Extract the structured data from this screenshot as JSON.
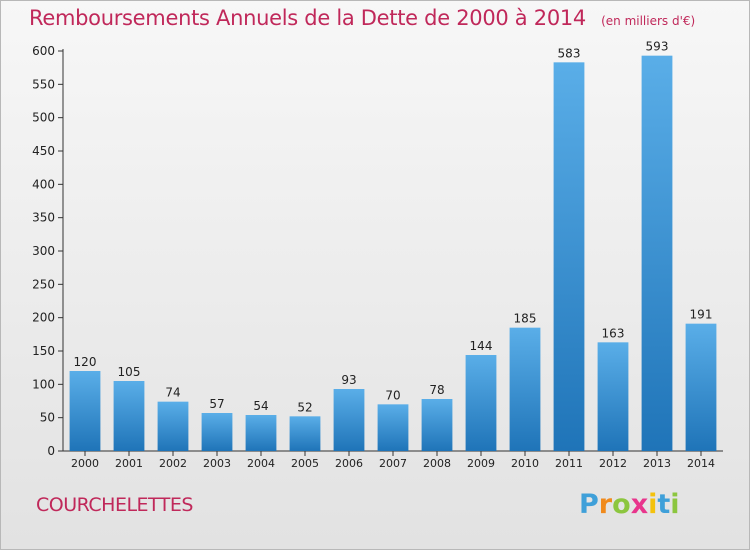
{
  "title": "Remboursements Annuels de la Dette de 2000 à 2014",
  "subtitle": "(en milliers d'€)",
  "commune": "COURCHELETTES",
  "logo": {
    "letters": [
      "P",
      "r",
      "o",
      "x",
      "i",
      "t",
      "i"
    ],
    "colors": [
      "#3fa0d9",
      "#f08a1c",
      "#8cc63f",
      "#e8358c",
      "#f4c20d",
      "#3fa0d9",
      "#8cc63f"
    ]
  },
  "colors": {
    "bar_top": "#5aaee8",
    "bar_bottom": "#1f74b8",
    "title": "#c0285a"
  },
  "chart_data": {
    "type": "bar",
    "categories": [
      "2000",
      "2001",
      "2002",
      "2003",
      "2004",
      "2005",
      "2006",
      "2007",
      "2008",
      "2009",
      "2010",
      "2011",
      "2012",
      "2013",
      "2014"
    ],
    "values": [
      120,
      105,
      74,
      57,
      54,
      52,
      93,
      70,
      78,
      144,
      185,
      583,
      163,
      593,
      191
    ],
    "title": "Remboursements Annuels de la Dette de 2000 à 2014",
    "ylim": [
      0,
      600
    ],
    "yticks": [
      0,
      50,
      100,
      150,
      200,
      250,
      300,
      350,
      400,
      450,
      500,
      550,
      600
    ],
    "grid": false,
    "data_labels": true
  }
}
